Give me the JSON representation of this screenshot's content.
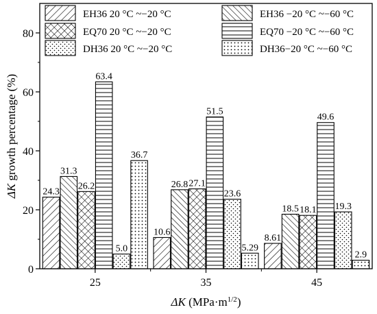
{
  "chart_data": {
    "type": "bar",
    "xlabel_symbol": "ΔK",
    "xlabel_unit": " (MPa·m",
    "xlabel_exp": "1/2",
    "xlabel_close": ")",
    "ylabel_symbol": "ΔK",
    "ylabel_text": " growth percentage (%)",
    "categories": [
      "25",
      "35",
      "45"
    ],
    "ylim": [
      0,
      90
    ],
    "yticks": [
      0,
      20,
      40,
      60,
      80
    ],
    "grid": false,
    "legend_position": "top",
    "series": [
      {
        "name": "EH36 20 °C ~−20 °C",
        "pattern": "diag-right",
        "values": [
          24.3,
          10.6,
          8.61
        ],
        "labels": [
          "24.3",
          "10.6",
          "8.61"
        ]
      },
      {
        "name": "EH36 −20 °C ~−60 °C",
        "pattern": "diag-left",
        "values": [
          31.3,
          26.8,
          18.5
        ],
        "labels": [
          "31.3",
          "26.8",
          "18.5"
        ]
      },
      {
        "name": "EQ70 20 °C ~−20 °C",
        "pattern": "crosshatch",
        "values": [
          26.2,
          27.1,
          18.1
        ],
        "labels": [
          "26.2",
          "27.1",
          "18.1"
        ]
      },
      {
        "name": "EQ70 −20 °C ~−60 °C",
        "pattern": "horizontal",
        "values": [
          63.4,
          51.5,
          49.6
        ],
        "labels": [
          "63.4",
          "51.5",
          "49.6"
        ]
      },
      {
        "name": "DH36 20 °C ~−20 °C",
        "pattern": "dots",
        "values": [
          5.0,
          23.6,
          19.3
        ],
        "labels": [
          "5.0",
          "23.6",
          "19.3"
        ]
      },
      {
        "name": "DH36−20 °C ~−60 °C",
        "pattern": "dots-grid",
        "values": [
          36.7,
          5.29,
          2.9
        ],
        "labels": [
          "36.7",
          "5.29",
          "2.9"
        ]
      }
    ]
  }
}
